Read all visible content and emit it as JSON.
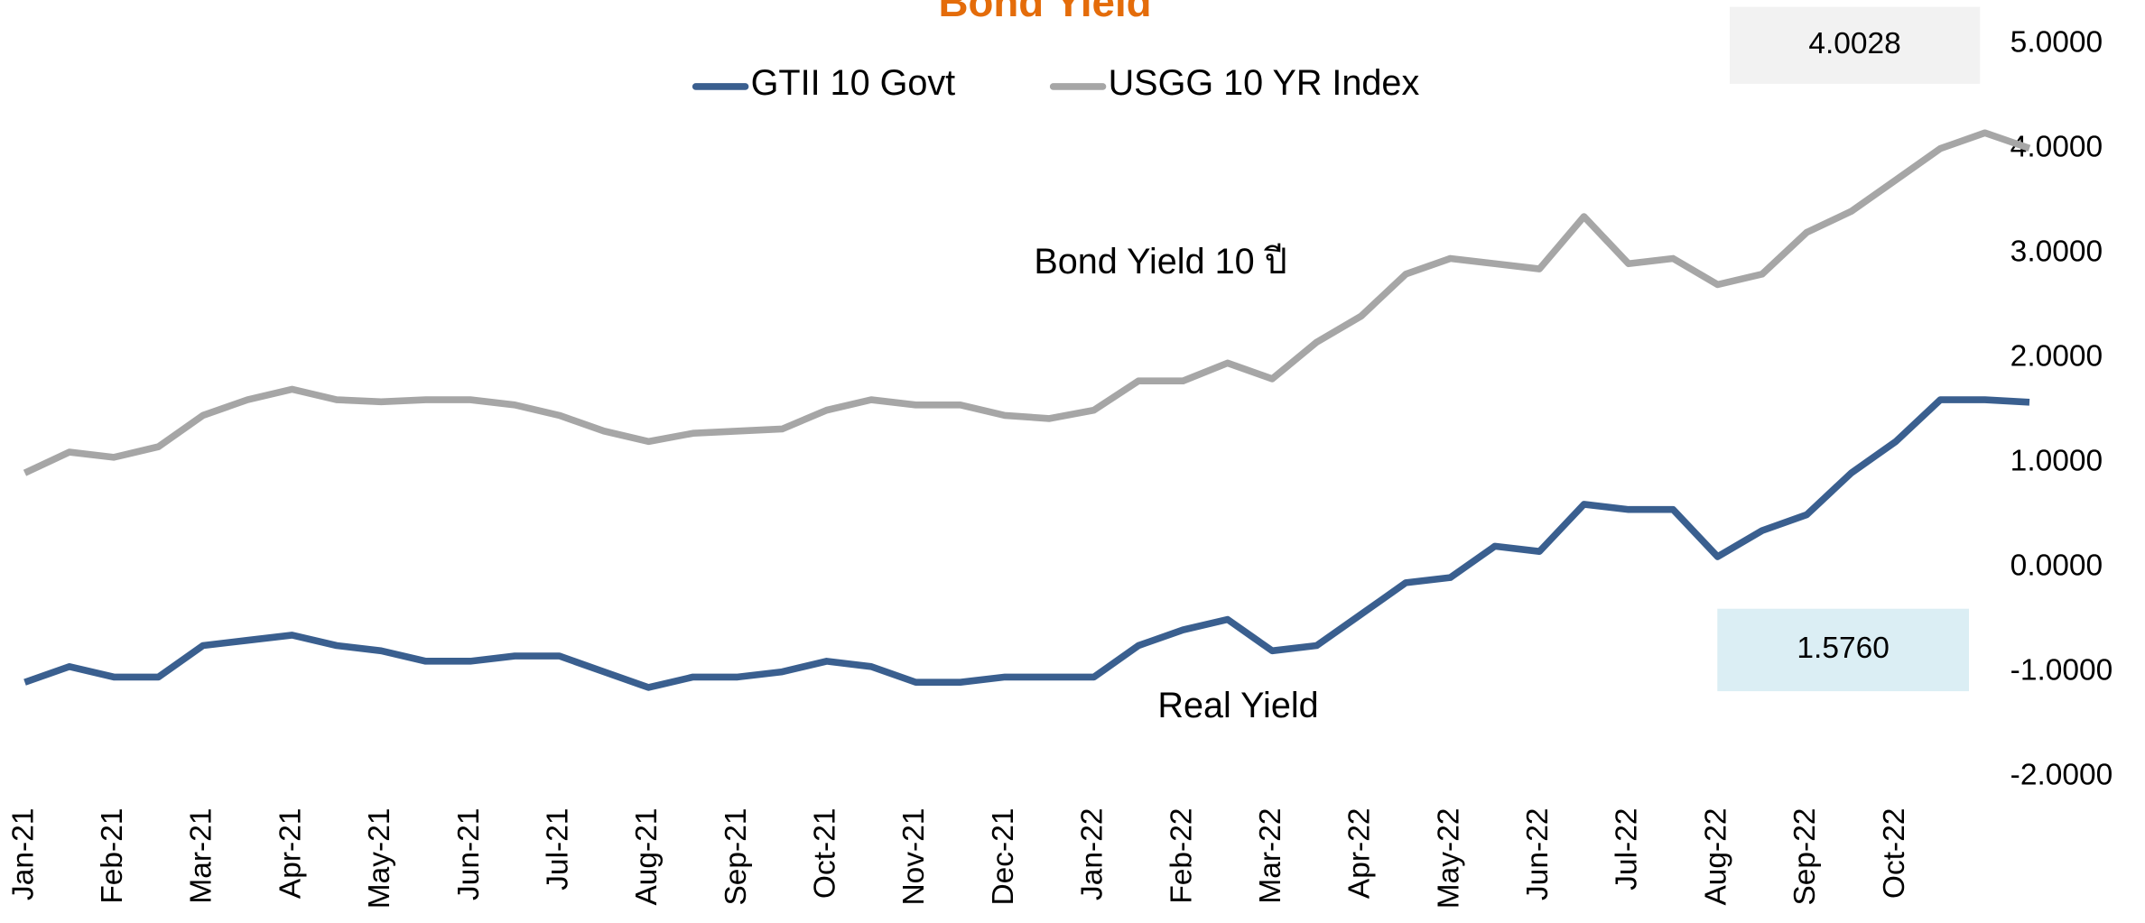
{
  "chart_data": {
    "type": "line",
    "title": "Bond Yield",
    "categories": [
      "Jan-21",
      null,
      "Feb-21",
      null,
      "Mar-21",
      null,
      "Apr-21",
      null,
      "May-21",
      null,
      "Jun-21",
      null,
      "Jul-21",
      null,
      "Aug-21",
      null,
      "Sep-21",
      null,
      "Oct-21",
      null,
      "Nov-21",
      null,
      "Dec-21",
      null,
      "Jan-22",
      null,
      "Feb-22",
      null,
      "Mar-22",
      null,
      "Apr-22",
      null,
      "May-22",
      null,
      "Jun-22",
      null,
      "Jul-22",
      null,
      "Aug-22",
      null,
      "Sep-22",
      null,
      "Oct-22",
      null,
      null,
      null
    ],
    "series": [
      {
        "name": "GTII 10 Govt",
        "color": "#3a5f8f",
        "values": [
          -1.1,
          -0.95,
          -1.05,
          -1.05,
          -0.75,
          -0.7,
          -0.65,
          -0.75,
          -0.8,
          -0.9,
          -0.9,
          -0.85,
          -0.85,
          -1.0,
          -1.15,
          -1.05,
          -1.05,
          -1.0,
          -0.9,
          -0.95,
          -1.1,
          -1.1,
          -1.05,
          -1.05,
          -1.05,
          -0.75,
          -0.6,
          -0.5,
          -0.8,
          -0.75,
          -0.45,
          -0.15,
          -0.1,
          0.2,
          0.15,
          0.6,
          0.55,
          0.55,
          0.1,
          0.35,
          0.5,
          0.9,
          1.2,
          1.6,
          1.6,
          1.576
        ],
        "value_labels": [
          null,
          null,
          null,
          null,
          null,
          null,
          null,
          null,
          null,
          null,
          null,
          null,
          null,
          null,
          null,
          null,
          null,
          null,
          null,
          null,
          null,
          null,
          null,
          null,
          null,
          null,
          null,
          null,
          null,
          null,
          null,
          null,
          null,
          null,
          null,
          null,
          null,
          null,
          null,
          null,
          null,
          null,
          null,
          null,
          null,
          "1.5760"
        ]
      },
      {
        "name": "USGG 10 YR Index",
        "color": "#a6a6a6",
        "values": [
          0.9,
          1.1,
          1.05,
          1.15,
          1.45,
          1.6,
          1.7,
          1.6,
          1.58,
          1.6,
          1.6,
          1.55,
          1.45,
          1.3,
          1.2,
          1.28,
          1.3,
          1.32,
          1.5,
          1.6,
          1.55,
          1.55,
          1.45,
          1.42,
          1.5,
          1.78,
          1.78,
          1.95,
          1.8,
          2.15,
          2.4,
          2.8,
          2.95,
          2.9,
          2.85,
          3.35,
          2.9,
          2.95,
          2.7,
          2.8,
          3.2,
          3.4,
          3.7,
          4.0,
          4.15,
          4.0028
        ],
        "value_labels": [
          null,
          null,
          null,
          null,
          null,
          null,
          null,
          null,
          null,
          null,
          null,
          null,
          null,
          null,
          null,
          null,
          null,
          null,
          null,
          null,
          null,
          null,
          null,
          null,
          null,
          null,
          null,
          null,
          null,
          null,
          null,
          null,
          null,
          null,
          null,
          null,
          null,
          null,
          null,
          null,
          null,
          null,
          null,
          null,
          null,
          "4.0028"
        ]
      }
    ],
    "ylim": [
      -2,
      5
    ],
    "yticks": [
      {
        "value": -2,
        "label": "-2.0000"
      },
      {
        "value": -1,
        "label": "-1.0000"
      },
      {
        "value": 0,
        "label": "0.0000"
      },
      {
        "value": 1,
        "label": "1.0000"
      },
      {
        "value": 2,
        "label": "2.0000"
      },
      {
        "value": 3,
        "label": "3.0000"
      },
      {
        "value": 4,
        "label": "4.0000"
      },
      {
        "value": 5,
        "label": "5.0000"
      }
    ],
    "annotations": [
      "Bond Yield 10  ปี",
      "Real Yield"
    ],
    "grid": false,
    "legend": "top"
  }
}
